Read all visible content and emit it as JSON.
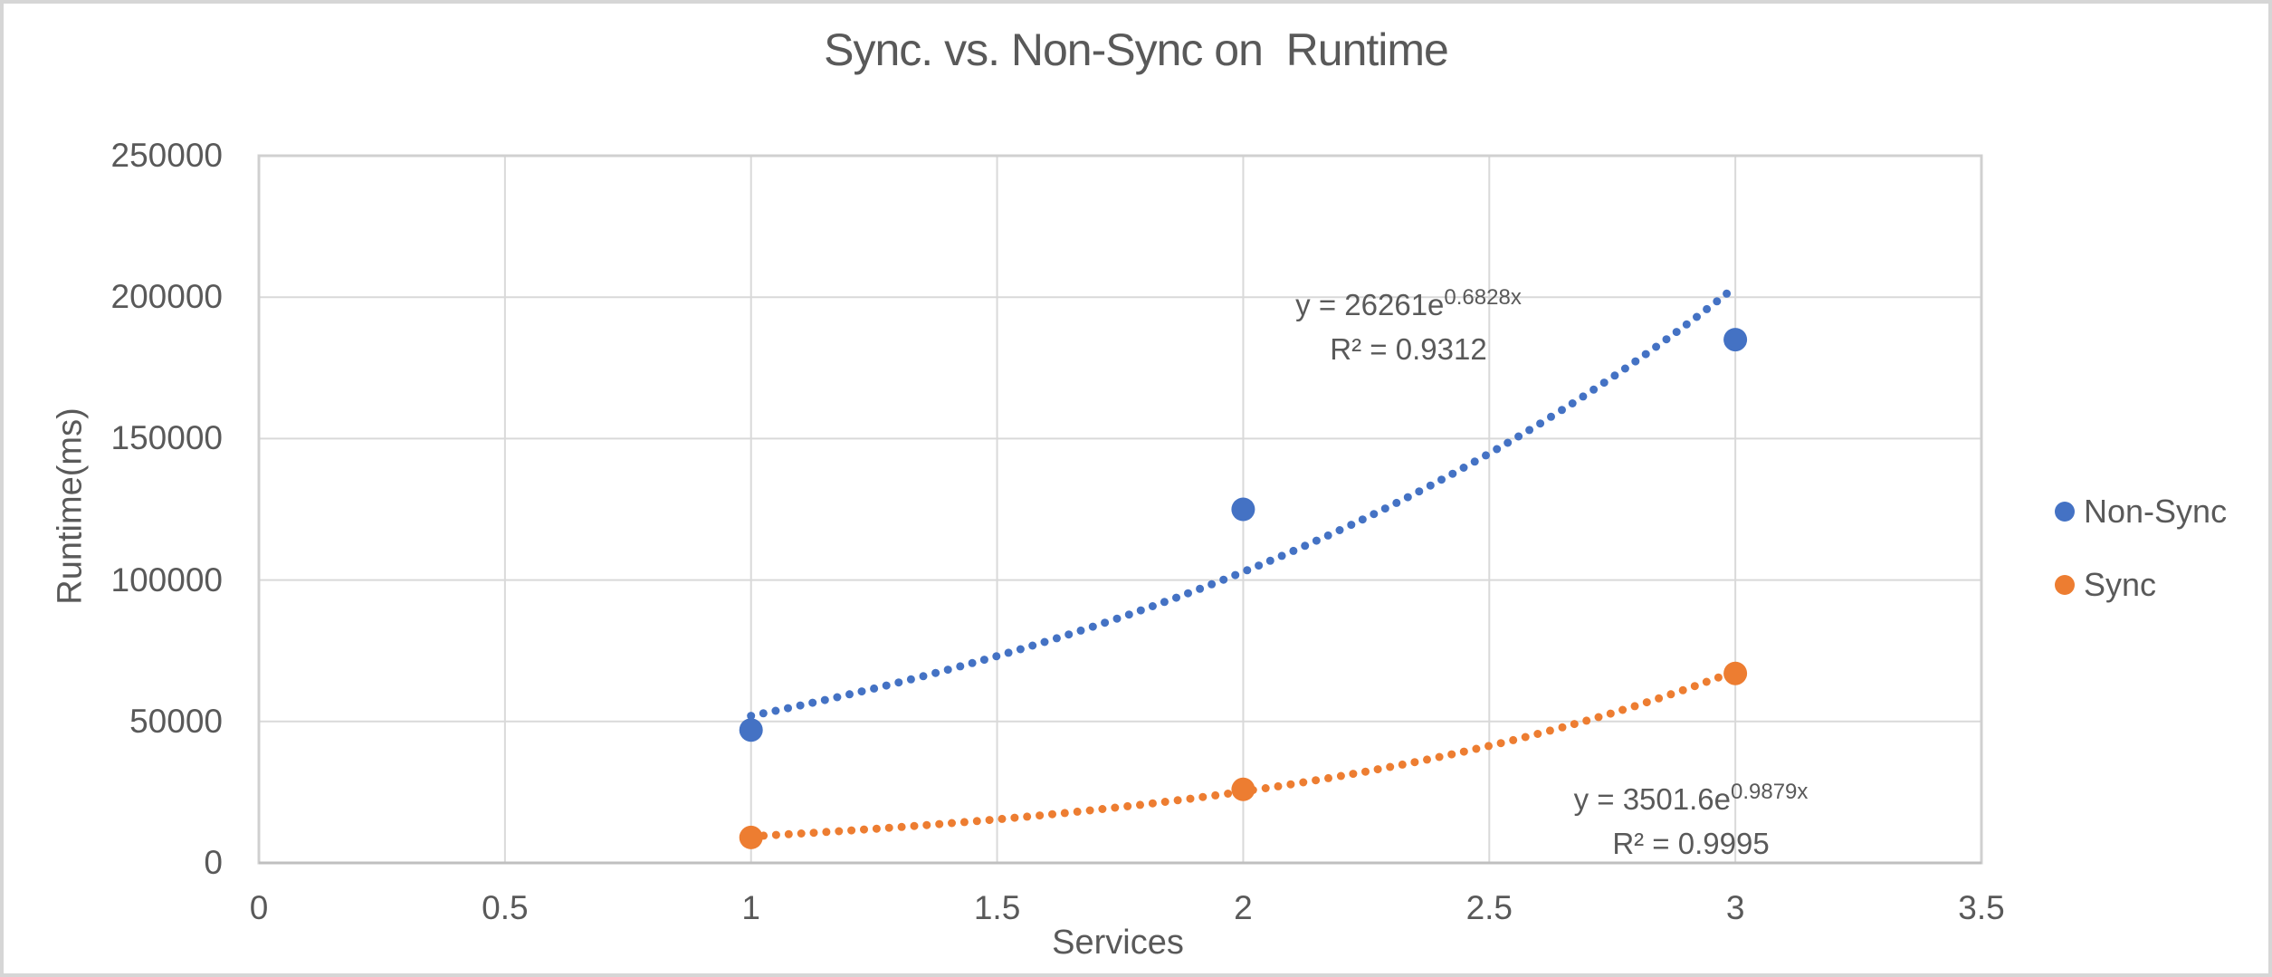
{
  "colors": {
    "accent_blue": "#4472C4",
    "accent_orange": "#ED7D31",
    "text": "#595959",
    "gridline": "#D9D9D9",
    "plot_border": "#D0D0D0",
    "axis_line": "#BFBFBF",
    "frame_border": "#D6D6D6"
  },
  "chart_data": {
    "type": "scatter",
    "title": "Sync. vs. Non-Sync on  Runtime",
    "xlabel": "Services",
    "ylabel": "Runtime(ms)",
    "xlim": [
      0,
      3.5
    ],
    "ylim": [
      0,
      250000
    ],
    "x_ticks": [
      0,
      0.5,
      1,
      1.5,
      2,
      2.5,
      3,
      3.5
    ],
    "x_tick_labels": [
      "0",
      "0.5",
      "1",
      "1.5",
      "2",
      "2.5",
      "3",
      "3.5"
    ],
    "y_ticks": [
      0,
      50000,
      100000,
      150000,
      200000,
      250000
    ],
    "y_tick_labels": [
      "0",
      "50000",
      "100000",
      "150000",
      "200000",
      "250000"
    ],
    "grid": true,
    "legend_position": "right",
    "series": [
      {
        "name": "Non-Sync",
        "key": "nonsync",
        "color": "#4472C4",
        "points": [
          [
            1,
            47000
          ],
          [
            2,
            125000
          ],
          [
            3,
            185000
          ]
        ],
        "trendline": {
          "kind": "exponential",
          "coef": 26261,
          "exp": 0.6828,
          "x_start": 1,
          "x_end": 3,
          "label_prefix": "y = 26261e",
          "label_exponent": "0.6828x",
          "r2_label": "R² = 0.9312"
        }
      },
      {
        "name": "Sync",
        "key": "sync",
        "color": "#ED7D31",
        "points": [
          [
            1,
            9000
          ],
          [
            2,
            26000
          ],
          [
            3,
            67000
          ]
        ],
        "trendline": {
          "kind": "exponential",
          "coef": 3501.6,
          "exp": 0.9879,
          "x_start": 1,
          "x_end": 3,
          "label_prefix": "y = 3501.6e",
          "label_exponent": "0.9879x",
          "r2_label": "R² = 0.9995"
        }
      }
    ]
  }
}
